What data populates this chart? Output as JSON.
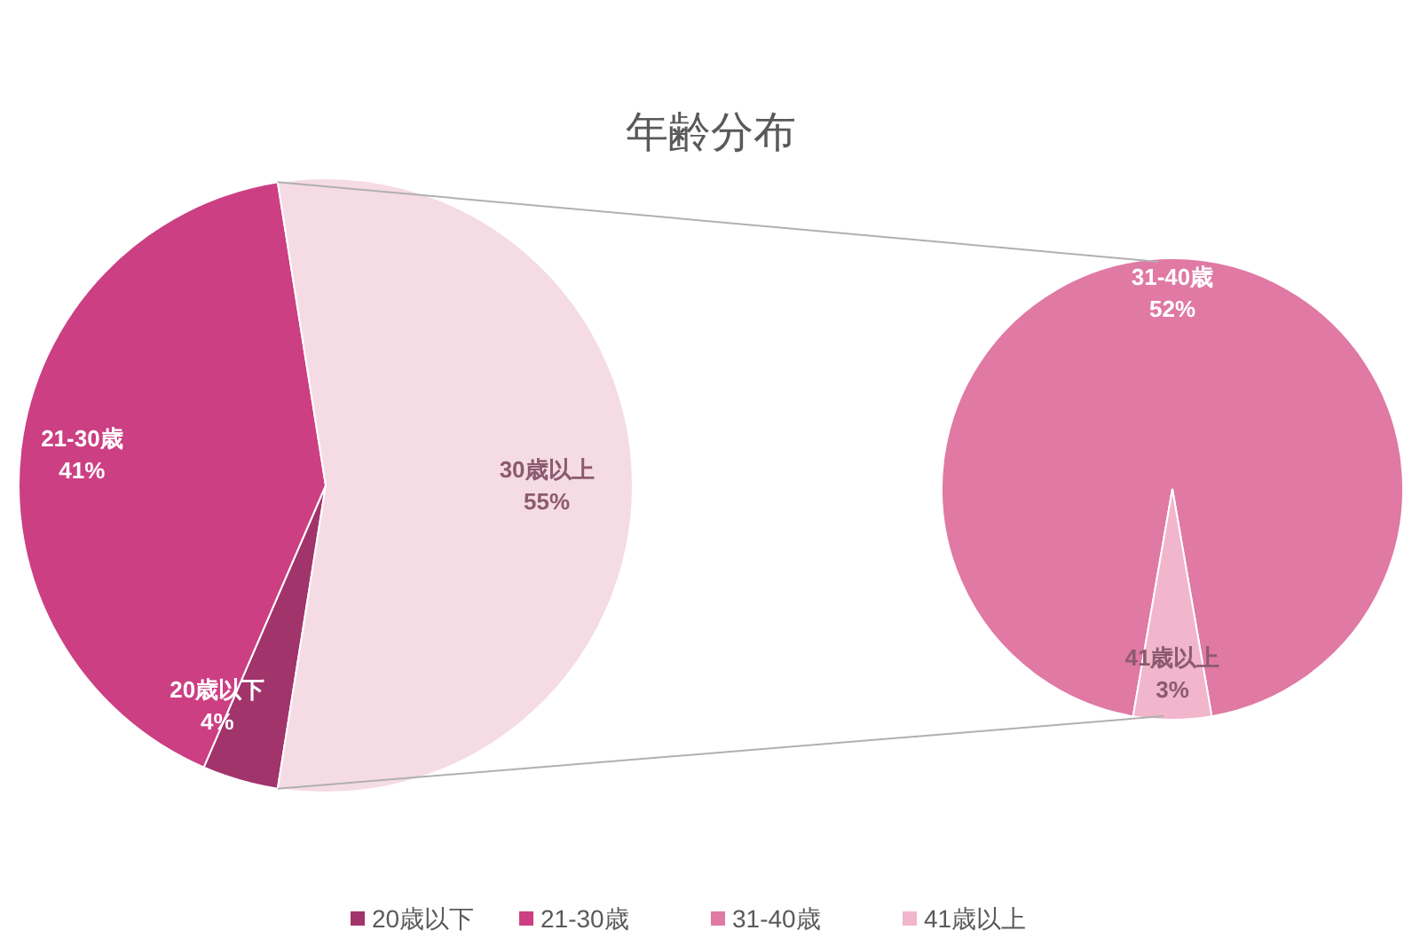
{
  "chart_data": [
    {
      "type": "pie",
      "title": "年齢分布",
      "categories": [
        "20歳以下",
        "21-30歳",
        "30歳以上"
      ],
      "values": [
        4,
        41,
        55
      ],
      "colors": [
        "#a2346c",
        "#cc3f82",
        "#f5dbe4"
      ],
      "value_labels": [
        "4%",
        "41%",
        "55%"
      ],
      "legend": "bottom"
    },
    {
      "type": "pie",
      "categories": [
        "31-40歳",
        "41歳以上"
      ],
      "values": [
        52,
        3
      ],
      "colors": [
        "#e079a4",
        "#f1b5cc"
      ],
      "value_labels": [
        "52%",
        "3%"
      ],
      "legend": "bottom"
    }
  ]
}
